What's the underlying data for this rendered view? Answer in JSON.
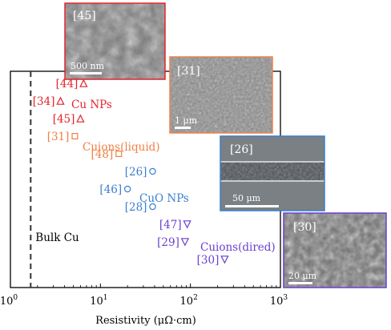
{
  "chart_data": {
    "type": "scatter",
    "x_axis": {
      "label": "Resistivity (μΩ·cm)",
      "scale": "log",
      "range": [
        1,
        1000
      ],
      "ticks": [
        {
          "value": 1,
          "base": "10",
          "exp": "0"
        },
        {
          "value": 10,
          "base": "10",
          "exp": "1"
        },
        {
          "value": 100,
          "base": "10",
          "exp": "2"
        },
        {
          "value": 1000,
          "base": "10",
          "exp": "3"
        }
      ]
    },
    "reference_line": {
      "label": "Bulk Cu",
      "x": 1.68,
      "style": "dashed"
    },
    "groups": [
      {
        "name": "Cu NPs",
        "color": "#e4232a",
        "marker": "triangle-up",
        "points": [
          {
            "label": "[44]",
            "x": 6.5,
            "row": 1
          },
          {
            "label": "[34]",
            "x": 3.6,
            "row": 2
          },
          {
            "label": "[45]",
            "x": 6.0,
            "row": 3
          }
        ]
      },
      {
        "name": "Cuions(liquid)",
        "color": "#f08046",
        "marker": "square",
        "points": [
          {
            "label": "[31]",
            "x": 5.2,
            "row": 4
          },
          {
            "label": "[48]",
            "x": 16.0,
            "row": 5
          }
        ]
      },
      {
        "name": "CuO NPs",
        "color": "#3a7fd0",
        "marker": "circle",
        "points": [
          {
            "label": "[26]",
            "x": 38.0,
            "row": 6
          },
          {
            "label": "[46]",
            "x": 20.0,
            "row": 7
          },
          {
            "label": "[28]",
            "x": 38.0,
            "row": 8
          }
        ]
      },
      {
        "name": "Cuions(dired)",
        "color": "#6a3fd0",
        "marker": "triangle-down",
        "points": [
          {
            "label": "[47]",
            "x": 92.0,
            "row": 9
          },
          {
            "label": "[29]",
            "x": 87.0,
            "row": 10
          },
          {
            "label": "[30]",
            "x": 240.0,
            "row": 11
          }
        ]
      }
    ]
  },
  "insets": [
    {
      "label": "[45]",
      "scale": "500 nm",
      "border": "#e4232a"
    },
    {
      "label": "[31]",
      "scale": "1 μm",
      "border": "#f08046"
    },
    {
      "label": "[26]",
      "scale": "50 μm",
      "border": "#3a7fd0"
    },
    {
      "label": "[30]",
      "scale": "20 μm",
      "border": "#6a3fd0"
    }
  ]
}
